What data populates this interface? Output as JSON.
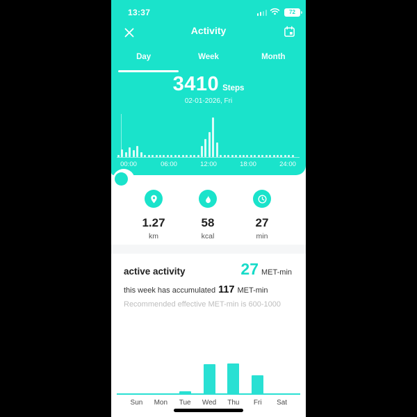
{
  "colors": {
    "teal": "#1AE3CB",
    "bar_teal": "#29E0D3",
    "accent_text": "#17DBC8",
    "text_dark": "#1E1E1E",
    "text_gray": "#4A4A4A",
    "text_light_gray": "#BDBDBD"
  },
  "status_bar": {
    "time": "13:37",
    "battery_level": "72"
  },
  "header": {
    "title": "Activity"
  },
  "tabs": {
    "items": [
      {
        "label": "Day",
        "active": true
      },
      {
        "label": "Week",
        "active": false
      },
      {
        "label": "Month",
        "active": false
      }
    ]
  },
  "steps_summary": {
    "value": "3410",
    "unit": "Steps",
    "date": "02-01-2026, Fri"
  },
  "daily_stats": {
    "items": [
      {
        "icon": "location-pin",
        "value": "1.27",
        "unit": "km"
      },
      {
        "icon": "flame",
        "value": "58",
        "unit": "kcal"
      },
      {
        "icon": "clock",
        "value": "27",
        "unit": "min"
      }
    ]
  },
  "active_activity": {
    "title": "active activity",
    "today_value": "27",
    "today_unit": "MET-min",
    "week_prefix": "this week has accumulated",
    "week_value": "117",
    "week_unit": "MET-min",
    "recommendation": "Recommended effective MET-min is 600-1000"
  },
  "chart_data": [
    {
      "type": "bar",
      "title": "Steps during the day",
      "x_tick_labels": [
        "00:00",
        "06:00",
        "12:00",
        "18:00",
        "24:00"
      ],
      "values": [
        3,
        11,
        7,
        14,
        10,
        16,
        7,
        3,
        3,
        3,
        3,
        3,
        3,
        3,
        3,
        3,
        3,
        3,
        3,
        3,
        3,
        3,
        16,
        26,
        36,
        57,
        21,
        3,
        3,
        3,
        3,
        3,
        3,
        3,
        3,
        3,
        3,
        3,
        3,
        3,
        3,
        3,
        3,
        3,
        3,
        3,
        3
      ],
      "unit": "relative bar height (px)",
      "selected_time": "00:00",
      "legend": "none",
      "grid": false
    },
    {
      "type": "bar",
      "title": "MET-min per weekday",
      "categories": [
        "Sun",
        "Mon",
        "Tue",
        "Wed",
        "Thu",
        "Fri",
        "Sat"
      ],
      "values": [
        0,
        0,
        3,
        43,
        44,
        27,
        0
      ],
      "ylabel": "MET-min",
      "ylim": [
        0,
        45
      ],
      "legend": "none",
      "grid": false
    }
  ]
}
